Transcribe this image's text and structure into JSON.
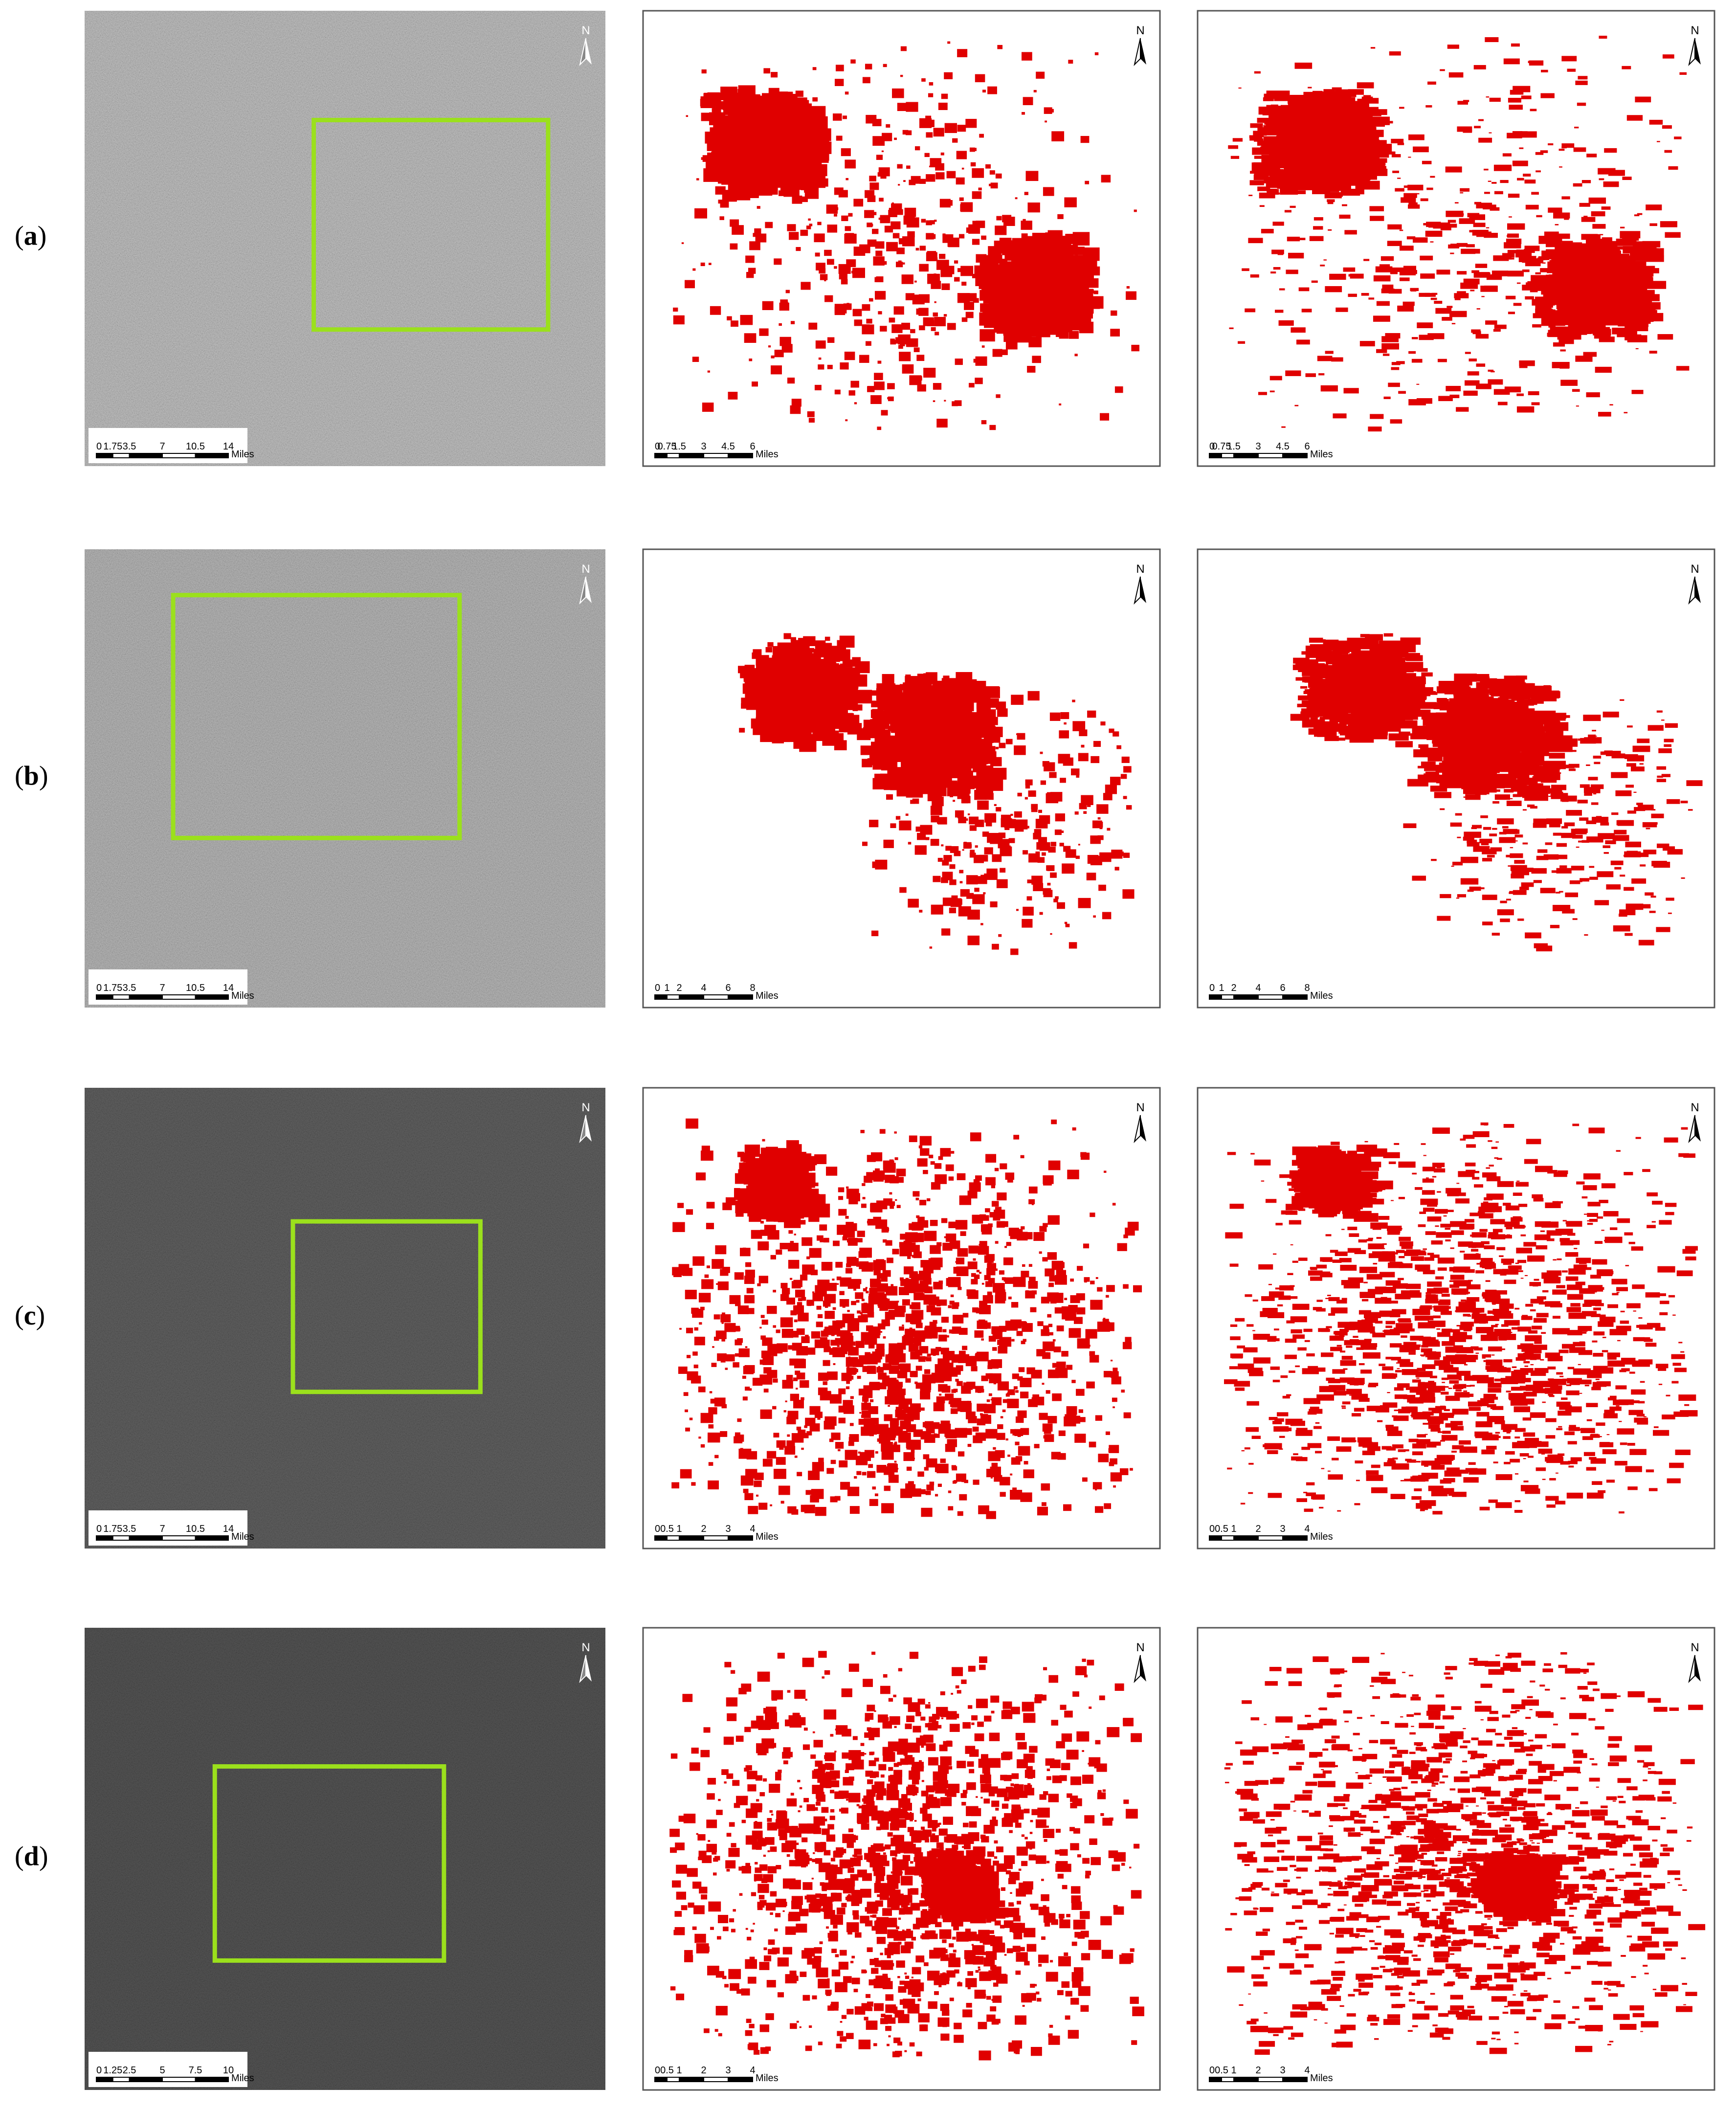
{
  "rows": [
    {
      "label_parts": [
        "(",
        "a",
        ")"
      ],
      "panels": [
        {
          "scale_labels": [
            "0",
            "1.75",
            "3.5",
            "7",
            "10.5",
            "14"
          ],
          "unit": "Miles",
          "north": "N"
        },
        {
          "scale_labels": [
            "0",
            "0.75",
            "1.5",
            "3",
            "4.5",
            "6"
          ],
          "unit": "Miles",
          "north": "N"
        },
        {
          "scale_labels": [
            "0",
            "0.75",
            "1.5",
            "3",
            "4.5",
            "6"
          ],
          "unit": "Miles",
          "north": "N"
        }
      ]
    },
    {
      "label_parts": [
        "(",
        "b",
        ")"
      ],
      "panels": [
        {
          "scale_labels": [
            "0",
            "1.75",
            "3.5",
            "7",
            "10.5",
            "14"
          ],
          "unit": "Miles",
          "north": "N"
        },
        {
          "scale_labels": [
            "0",
            "1",
            "2",
            "4",
            "6",
            "8"
          ],
          "unit": "Miles",
          "north": "N"
        },
        {
          "scale_labels": [
            "0",
            "1",
            "2",
            "4",
            "6",
            "8"
          ],
          "unit": "Miles",
          "north": "N"
        }
      ]
    },
    {
      "label_parts": [
        "(",
        "c",
        ")"
      ],
      "panels": [
        {
          "scale_labels": [
            "0",
            "1.75",
            "3.5",
            "7",
            "10.5",
            "14"
          ],
          "unit": "Miles",
          "north": "N"
        },
        {
          "scale_labels": [
            "0",
            "0.5",
            "1",
            "2",
            "3",
            "4"
          ],
          "unit": "Miles",
          "north": "N"
        },
        {
          "scale_labels": [
            "0",
            "0.5",
            "1",
            "2",
            "3",
            "4"
          ],
          "unit": "Miles",
          "north": "N"
        }
      ]
    },
    {
      "label_parts": [
        "(",
        "d",
        ")"
      ],
      "panels": [
        {
          "scale_labels": [
            "0",
            "1.25",
            "2.5",
            "5",
            "7.5",
            "10"
          ],
          "unit": "Miles",
          "north": "N"
        },
        {
          "scale_labels": [
            "0",
            "0.5",
            "1",
            "2",
            "3",
            "4"
          ],
          "unit": "Miles",
          "north": "N"
        },
        {
          "scale_labels": [
            "0",
            "0.5",
            "1",
            "2",
            "3",
            "4"
          ],
          "unit": "Miles",
          "north": "N"
        }
      ]
    }
  ]
}
